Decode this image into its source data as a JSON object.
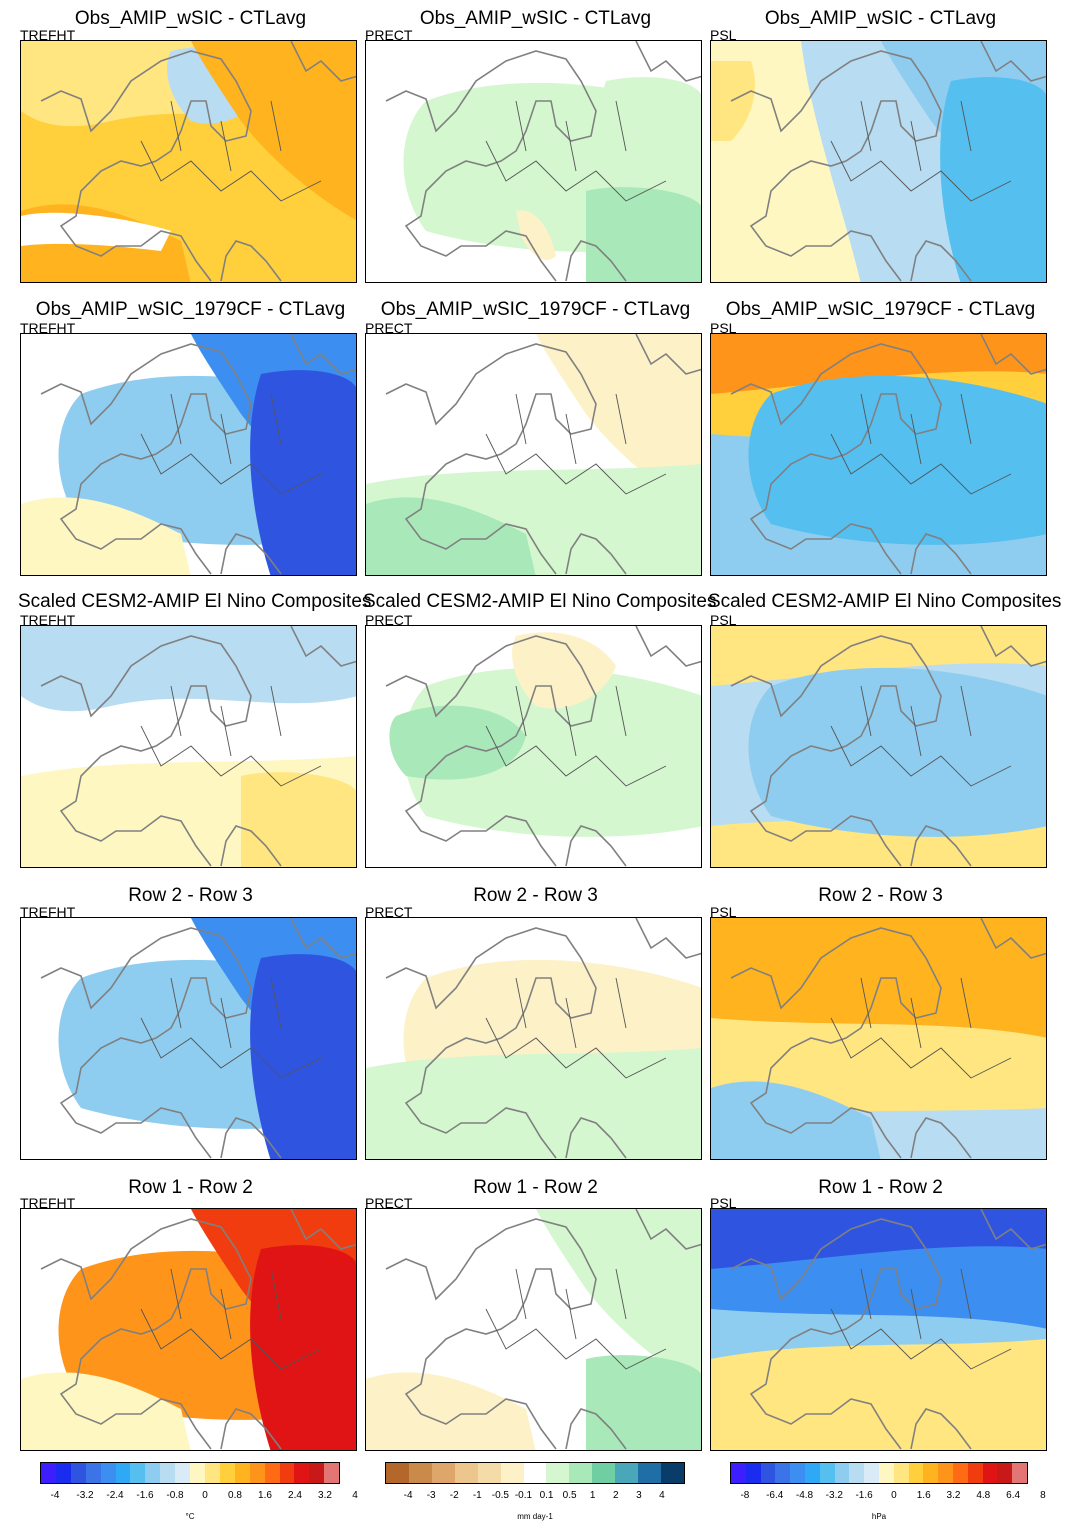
{
  "rows": [
    {
      "title": "Obs_AMIP_wSIC - CTLavg"
    },
    {
      "title": "Obs_AMIP_wSIC_1979CF - CTLavg"
    },
    {
      "title": "Scaled CESM2-AMIP El Nino Composites"
    },
    {
      "title": "Row 2 - Row 3"
    },
    {
      "title": "Row 1 - Row 2"
    }
  ],
  "columns": [
    {
      "variable": "TREFHT",
      "unit": "°C",
      "ticks": [
        "-4",
        "-3.2",
        "-2.4",
        "-1.6",
        "-0.8",
        "0",
        "0.8",
        "1.6",
        "2.4",
        "3.2",
        "4"
      ]
    },
    {
      "variable": "PRECT",
      "unit": "mm day-1",
      "ticks": [
        "-4",
        "-3",
        "-2",
        "-1",
        "-0.5",
        "-0.1",
        "0.1",
        "0.5",
        "1",
        "2",
        "3",
        "4"
      ]
    },
    {
      "variable": "PSL",
      "unit": "hPa",
      "ticks": [
        "-8",
        "-6.4",
        "-4.8",
        "-3.2",
        "-1.6",
        "0",
        "1.6",
        "3.2",
        "4.8",
        "6.4",
        "8"
      ]
    }
  ],
  "colors": {
    "temp_palette": [
      "#3c1eff",
      "#1a2cf0",
      "#2f55e0",
      "#3b74e6",
      "#3c8ef0",
      "#2fa9f5",
      "#55bff0",
      "#8fcdf0",
      "#b8dcf2",
      "#d8ebf7",
      "#fff7c2",
      "#ffe680",
      "#ffcf3c",
      "#ffb31e",
      "#ff941a",
      "#ff6b14",
      "#f03c0f",
      "#e01414",
      "#c81818",
      "#e37575"
    ],
    "prec_palette": [
      "#b3672a",
      "#c98a4a",
      "#dfa66b",
      "#ecc68c",
      "#f5dba8",
      "#fdf1c8",
      "#ffffff",
      "#d4f7cf",
      "#a9e8b9",
      "#6fcfa2",
      "#4aa6b9",
      "#1f6fa6",
      "#0a3c6a"
    ],
    "psl_palette": [
      "#3c1eff",
      "#1a2cf0",
      "#2f55e0",
      "#3b74e6",
      "#3c8ef0",
      "#2fa9f5",
      "#55bff0",
      "#8fcdf0",
      "#b8dcf2",
      "#d8ebf7",
      "#fff7c2",
      "#ffe680",
      "#ffcf3c",
      "#ffb31e",
      "#ff941a",
      "#ff6b14",
      "#f03c0f",
      "#e01414",
      "#c81818",
      "#e37575"
    ]
  },
  "fields": [
    [
      {
        "base": "#ffcf3c",
        "blobs": [
          {
            "color": "#ffe680",
            "shape": "n"
          },
          {
            "color": "#b8dcf2",
            "shape": "scand"
          },
          {
            "color": "#ffb31e",
            "shape": "ne"
          },
          {
            "color": "#ffb31e",
            "shape": "sw"
          },
          {
            "color": "#ffffff",
            "shape": "sea"
          }
        ]
      },
      {
        "base": "#ffffff",
        "blobs": [
          {
            "color": "#d4f7cf",
            "shape": "c"
          },
          {
            "color": "#d4f7cf",
            "shape": "e"
          },
          {
            "color": "#a9e8b9",
            "shape": "se"
          },
          {
            "color": "#fdf1c8",
            "shape": "it"
          }
        ]
      },
      {
        "base": "#b8dcf2",
        "blobs": [
          {
            "color": "#fff7c2",
            "shape": "wband"
          },
          {
            "color": "#ffe680",
            "shape": "nw"
          },
          {
            "color": "#8fcdf0",
            "shape": "ne"
          },
          {
            "color": "#55bff0",
            "shape": "e"
          }
        ]
      }
    ],
    [
      {
        "base": "#ffffff",
        "blobs": [
          {
            "color": "#8fcdf0",
            "shape": "c"
          },
          {
            "color": "#3c8ef0",
            "shape": "ne"
          },
          {
            "color": "#2f55e0",
            "shape": "e"
          },
          {
            "color": "#fff7c2",
            "shape": "sw"
          }
        ]
      },
      {
        "base": "#ffffff",
        "blobs": [
          {
            "color": "#fdf1c8",
            "shape": "ne"
          },
          {
            "color": "#d4f7cf",
            "shape": "s"
          },
          {
            "color": "#a9e8b9",
            "shape": "sw"
          }
        ]
      },
      {
        "base": "#8fcdf0",
        "blobs": [
          {
            "color": "#ffcf3c",
            "shape": "nband"
          },
          {
            "color": "#ff941a",
            "shape": "ntop"
          },
          {
            "color": "#55bff0",
            "shape": "c"
          }
        ]
      }
    ],
    [
      {
        "base": "#ffffff",
        "blobs": [
          {
            "color": "#b8dcf2",
            "shape": "n"
          },
          {
            "color": "#fff7c2",
            "shape": "s"
          },
          {
            "color": "#ffe680",
            "shape": "se"
          }
        ]
      },
      {
        "base": "#ffffff",
        "blobs": [
          {
            "color": "#d4f7cf",
            "shape": "c"
          },
          {
            "color": "#a9e8b9",
            "shape": "wc"
          },
          {
            "color": "#fdf1c8",
            "shape": "scand"
          }
        ]
      },
      {
        "base": "#b8dcf2",
        "blobs": [
          {
            "color": "#ffe680",
            "shape": "ntop"
          },
          {
            "color": "#ffe680",
            "shape": "sbot"
          },
          {
            "color": "#8fcdf0",
            "shape": "c"
          }
        ]
      }
    ],
    [
      {
        "base": "#ffffff",
        "blobs": [
          {
            "color": "#8fcdf0",
            "shape": "c"
          },
          {
            "color": "#3c8ef0",
            "shape": "ne"
          },
          {
            "color": "#2f55e0",
            "shape": "e"
          }
        ]
      },
      {
        "base": "#ffffff",
        "blobs": [
          {
            "color": "#fdf1c8",
            "shape": "c"
          },
          {
            "color": "#d4f7cf",
            "shape": "s"
          }
        ]
      },
      {
        "base": "#ffe680",
        "blobs": [
          {
            "color": "#ffb31e",
            "shape": "nband"
          },
          {
            "color": "#b8dcf2",
            "shape": "sbot"
          },
          {
            "color": "#8fcdf0",
            "shape": "sw"
          }
        ]
      }
    ],
    [
      {
        "base": "#ffffff",
        "blobs": [
          {
            "color": "#ff941a",
            "shape": "c"
          },
          {
            "color": "#f03c0f",
            "shape": "ne"
          },
          {
            "color": "#e01414",
            "shape": "e"
          },
          {
            "color": "#fff7c2",
            "shape": "sw"
          }
        ]
      },
      {
        "base": "#ffffff",
        "blobs": [
          {
            "color": "#d4f7cf",
            "shape": "ne"
          },
          {
            "color": "#fdf1c8",
            "shape": "sw"
          },
          {
            "color": "#a9e8b9",
            "shape": "se"
          }
        ]
      },
      {
        "base": "#8fcdf0",
        "blobs": [
          {
            "color": "#3c8ef0",
            "shape": "nband"
          },
          {
            "color": "#2f55e0",
            "shape": "ntop"
          },
          {
            "color": "#ffcf3c",
            "shape": "sw"
          },
          {
            "color": "#ffe680",
            "shape": "s"
          }
        ]
      }
    ]
  ]
}
